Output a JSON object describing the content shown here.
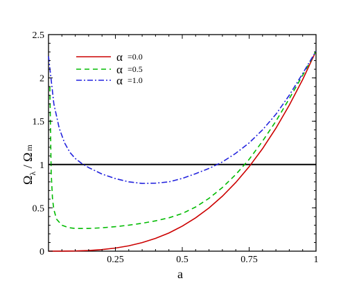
{
  "chart_data": {
    "type": "line",
    "xlabel": "a",
    "ylabel_parts": {
      "omega1": "Ω",
      "sub1": "λ",
      "slash": " / ",
      "omega2": "Ω",
      "sub2": "m"
    },
    "xlim": [
      0,
      1
    ],
    "ylim": [
      0,
      2.5
    ],
    "xticks": [
      0.25,
      0.5,
      0.75,
      1
    ],
    "xtick_labels": [
      "0.25",
      "0.5",
      "0.75",
      "1"
    ],
    "yticks": [
      0,
      0.5,
      1,
      1.5,
      2,
      2.5
    ],
    "ytick_labels": [
      "0",
      "0.5",
      "1",
      "1.5",
      "2",
      "2.5"
    ],
    "grid": false,
    "legend_position": "top-left",
    "reference_line": {
      "y": 1,
      "color": "#000000"
    },
    "series": [
      {
        "name": "α =0.0",
        "legend_symbol": "α",
        "legend_value": "=0.0",
        "color": "#cc0000",
        "dash": "solid",
        "x": [
          0.0,
          0.05,
          0.1,
          0.15,
          0.2,
          0.25,
          0.3,
          0.35,
          0.4,
          0.45,
          0.5,
          0.55,
          0.6,
          0.65,
          0.7,
          0.75,
          0.8,
          0.85,
          0.9,
          0.95,
          1.0
        ],
        "y": [
          0.0,
          0.0003,
          0.0023,
          0.0078,
          0.0185,
          0.036,
          0.062,
          0.099,
          0.148,
          0.21,
          0.289,
          0.385,
          0.499,
          0.635,
          0.793,
          0.975,
          1.183,
          1.419,
          1.685,
          1.981,
          2.31
        ]
      },
      {
        "name": "α =0.5",
        "legend_symbol": "α",
        "legend_value": "=0.5",
        "color": "#00bb00",
        "dash": "dashed",
        "x": [
          0.005,
          0.01,
          0.015,
          0.02,
          0.03,
          0.05,
          0.075,
          0.1,
          0.15,
          0.2,
          0.25,
          0.3,
          0.35,
          0.4,
          0.45,
          0.5,
          0.55,
          0.6,
          0.65,
          0.7,
          0.75,
          0.8,
          0.85,
          0.9,
          0.95,
          1.0
        ],
        "y": [
          1.9,
          0.9,
          0.6,
          0.48,
          0.37,
          0.3,
          0.272,
          0.262,
          0.262,
          0.27,
          0.283,
          0.3,
          0.322,
          0.35,
          0.385,
          0.435,
          0.51,
          0.61,
          0.735,
          0.885,
          1.06,
          1.27,
          1.5,
          1.76,
          2.03,
          2.31
        ]
      },
      {
        "name": "α =1.0",
        "legend_symbol": "α",
        "legend_value": "=1.0",
        "color": "#2222dd",
        "dash": "dashdot",
        "x": [
          0.0,
          0.02,
          0.04,
          0.06,
          0.08,
          0.1,
          0.125,
          0.15,
          0.2,
          0.25,
          0.3,
          0.35,
          0.4,
          0.45,
          0.5,
          0.55,
          0.6,
          0.65,
          0.7,
          0.75,
          0.8,
          0.85,
          0.9,
          0.95,
          1.0
        ],
        "y": [
          2.25,
          1.7,
          1.42,
          1.25,
          1.14,
          1.07,
          1.01,
          0.965,
          0.89,
          0.838,
          0.8,
          0.782,
          0.785,
          0.8,
          0.84,
          0.895,
          0.955,
          1.03,
          1.13,
          1.25,
          1.4,
          1.58,
          1.8,
          2.05,
          2.31
        ]
      }
    ]
  }
}
